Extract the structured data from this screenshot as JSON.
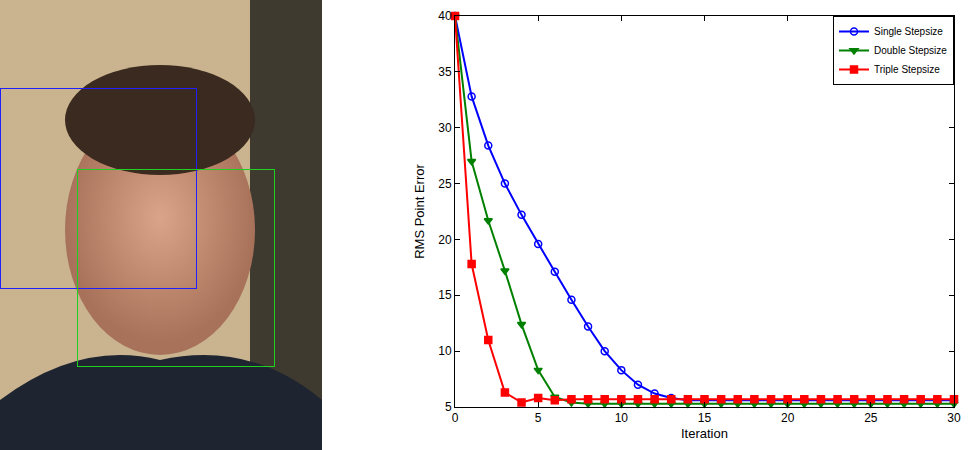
{
  "chart_data": {
    "type": "line",
    "x_label": "Iteration",
    "y_label": "RMS Point Error",
    "x": [
      0,
      1,
      2,
      3,
      4,
      5,
      6,
      7,
      8,
      9,
      10,
      11,
      12,
      13,
      14,
      15,
      16,
      17,
      18,
      19,
      20,
      21,
      22,
      23,
      24,
      25,
      26,
      27,
      28,
      29,
      30
    ],
    "series": [
      {
        "name": "Single Stepsize",
        "color": "#0000ff",
        "marker": "circle-open",
        "line_style": "solid",
        "values": [
          40,
          32.8,
          28.4,
          25,
          22.2,
          19.6,
          17.1,
          14.6,
          12.2,
          10.0,
          8.3,
          7.0,
          6.2,
          5.8,
          5.6,
          5.6,
          5.6,
          5.6,
          5.6,
          5.6,
          5.6,
          5.6,
          5.6,
          5.6,
          5.6,
          5.6,
          5.6,
          5.6,
          5.6,
          5.6,
          5.6
        ]
      },
      {
        "name": "Double Stepsize",
        "color": "#008000",
        "marker": "triangle-down",
        "line_style": "solid",
        "values": [
          40,
          27,
          21.7,
          17.2,
          12.4,
          8.3,
          5.9,
          5.4,
          5.3,
          5.3,
          5.3,
          5.3,
          5.3,
          5.3,
          5.3,
          5.3,
          5.3,
          5.3,
          5.3,
          5.3,
          5.3,
          5.3,
          5.3,
          5.3,
          5.3,
          5.3,
          5.3,
          5.3,
          5.3,
          5.3,
          5.3
        ]
      },
      {
        "name": "Triple Stepsize",
        "color": "#ff0000",
        "marker": "square",
        "line_style": "solid",
        "values": [
          40,
          17.8,
          11,
          6.3,
          5.4,
          5.8,
          5.6,
          5.7,
          5.7,
          5.7,
          5.7,
          5.7,
          5.7,
          5.7,
          5.7,
          5.7,
          5.7,
          5.7,
          5.7,
          5.7,
          5.7,
          5.7,
          5.7,
          5.7,
          5.7,
          5.7,
          5.7,
          5.7,
          5.7,
          5.7,
          5.7
        ]
      }
    ],
    "xlim": [
      0,
      30
    ],
    "xticks": [
      0,
      5,
      10,
      15,
      20,
      25,
      30
    ],
    "ylim": [
      5,
      40
    ],
    "yticks": [
      5,
      10,
      15,
      20,
      25,
      30,
      35,
      40
    ],
    "grid": false,
    "legend": "upper right"
  }
}
